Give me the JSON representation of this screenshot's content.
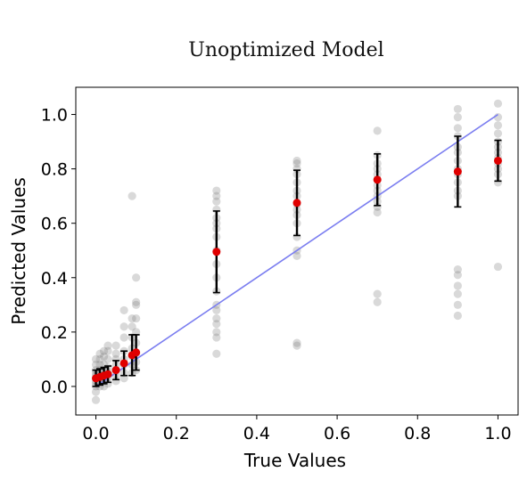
{
  "chart_data": {
    "type": "scatter",
    "title": "Unoptimized Model",
    "xlabel": "True Values",
    "ylabel": "Predicted Values",
    "xlim": [
      -0.05,
      1.05
    ],
    "ylim": [
      -0.105,
      1.1
    ],
    "xticks": [
      "0.0",
      "0.2",
      "0.4",
      "0.6",
      "0.8",
      "1.0"
    ],
    "yticks": [
      "0.0",
      "0.2",
      "0.4",
      "0.6",
      "0.8",
      "1.0"
    ],
    "grid": false,
    "reference_line": {
      "x": [
        0,
        1
      ],
      "y": [
        0,
        1
      ],
      "color": "#7b7ef0"
    },
    "colors": {
      "raw_points": "#808080",
      "mean_marker": "#e00000",
      "error_bar": "#000000"
    },
    "mean_with_std": [
      {
        "x": 0.0,
        "mean": 0.03,
        "err": 0.03
      },
      {
        "x": 0.01,
        "mean": 0.035,
        "err": 0.03
      },
      {
        "x": 0.02,
        "mean": 0.04,
        "err": 0.03
      },
      {
        "x": 0.03,
        "mean": 0.045,
        "err": 0.03
      },
      {
        "x": 0.05,
        "mean": 0.06,
        "err": 0.035
      },
      {
        "x": 0.07,
        "mean": 0.085,
        "err": 0.045
      },
      {
        "x": 0.09,
        "mean": 0.115,
        "err": 0.075
      },
      {
        "x": 0.1,
        "mean": 0.125,
        "err": 0.065
      },
      {
        "x": 0.3,
        "mean": 0.495,
        "err": 0.15
      },
      {
        "x": 0.5,
        "mean": 0.675,
        "err": 0.12
      },
      {
        "x": 0.7,
        "mean": 0.76,
        "err": 0.095
      },
      {
        "x": 0.9,
        "mean": 0.79,
        "err": 0.13
      },
      {
        "x": 1.0,
        "mean": 0.83,
        "err": 0.075
      }
    ],
    "raw_points": [
      {
        "x": 0.0,
        "y": [
          -0.05,
          -0.02,
          0.0,
          0.01,
          0.02,
          0.03,
          0.04,
          0.05,
          0.06,
          0.08,
          0.1
        ]
      },
      {
        "x": 0.01,
        "y": [
          0.0,
          0.02,
          0.03,
          0.04,
          0.06,
          0.08,
          0.1,
          0.12
        ]
      },
      {
        "x": 0.02,
        "y": [
          0.0,
          0.02,
          0.04,
          0.06,
          0.08,
          0.11,
          0.13
        ]
      },
      {
        "x": 0.03,
        "y": [
          0.01,
          0.03,
          0.05,
          0.07,
          0.1,
          0.13,
          0.15
        ]
      },
      {
        "x": 0.05,
        "y": [
          0.02,
          0.04,
          0.06,
          0.08,
          0.1,
          0.12,
          0.15
        ]
      },
      {
        "x": 0.07,
        "y": [
          0.03,
          0.05,
          0.08,
          0.1,
          0.13,
          0.18,
          0.22,
          0.28
        ]
      },
      {
        "x": 0.09,
        "y": [
          0.05,
          0.08,
          0.11,
          0.14,
          0.18,
          0.22,
          0.25,
          0.7
        ]
      },
      {
        "x": 0.1,
        "y": [
          0.06,
          0.09,
          0.12,
          0.16,
          0.2,
          0.25,
          0.3,
          0.31,
          0.4
        ]
      },
      {
        "x": 0.3,
        "y": [
          0.12,
          0.18,
          0.2,
          0.23,
          0.25,
          0.28,
          0.3,
          0.35,
          0.4,
          0.45,
          0.5,
          0.55,
          0.58,
          0.6,
          0.62,
          0.65,
          0.68,
          0.7,
          0.72
        ]
      },
      {
        "x": 0.5,
        "y": [
          0.15,
          0.16,
          0.48,
          0.5,
          0.55,
          0.6,
          0.63,
          0.65,
          0.67,
          0.7,
          0.72,
          0.75,
          0.78,
          0.8,
          0.82,
          0.83
        ]
      },
      {
        "x": 0.7,
        "y": [
          0.31,
          0.34,
          0.64,
          0.66,
          0.68,
          0.7,
          0.72,
          0.74,
          0.76,
          0.78,
          0.8,
          0.82,
          0.85,
          0.94
        ]
      },
      {
        "x": 0.9,
        "y": [
          0.26,
          0.3,
          0.34,
          0.37,
          0.41,
          0.43,
          0.7,
          0.72,
          0.75,
          0.78,
          0.8,
          0.83,
          0.86,
          0.88,
          0.92,
          0.95,
          0.99,
          1.02
        ]
      },
      {
        "x": 1.0,
        "y": [
          0.44,
          0.75,
          0.78,
          0.8,
          0.82,
          0.84,
          0.86,
          0.88,
          0.9,
          0.93,
          0.96,
          0.99,
          1.04
        ]
      }
    ]
  }
}
